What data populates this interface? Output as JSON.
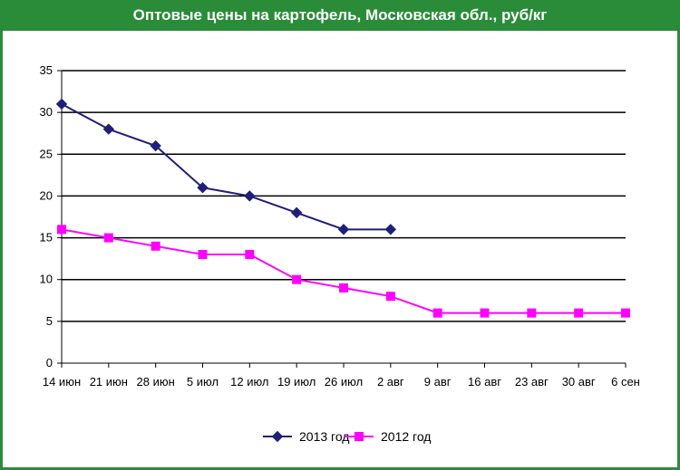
{
  "header": {
    "title": "Оптовые цены на картофель, Московская обл., руб/кг"
  },
  "colors": {
    "header_bg": "#2a8c39",
    "series_2013": "#1f1f7a",
    "series_2012": "#ff00ff",
    "grid": "#000000"
  },
  "chart_data": {
    "type": "line",
    "title": "Оптовые цены на картофель, Московская обл., руб/кг",
    "xlabel": "",
    "ylabel": "",
    "categories": [
      "14 июн",
      "21 июн",
      "28 июн",
      "5 июл",
      "12 июл",
      "19 июл",
      "26 июл",
      "2 авг",
      "9 авг",
      "16 авг",
      "23 авг",
      "30 авг",
      "6 сен"
    ],
    "ylim": [
      0,
      35
    ],
    "yticks": [
      0,
      5,
      10,
      15,
      20,
      25,
      30,
      35
    ],
    "grid": true,
    "legend_position": "bottom",
    "series": [
      {
        "name": "2013 год",
        "marker": "diamond",
        "values": [
          31,
          28,
          26,
          21,
          20,
          18,
          16,
          16,
          null,
          null,
          null,
          null,
          null
        ]
      },
      {
        "name": "2012 год",
        "marker": "square",
        "values": [
          16,
          15,
          14,
          13,
          13,
          10,
          9,
          8,
          6,
          6,
          6,
          6,
          6
        ]
      }
    ]
  }
}
